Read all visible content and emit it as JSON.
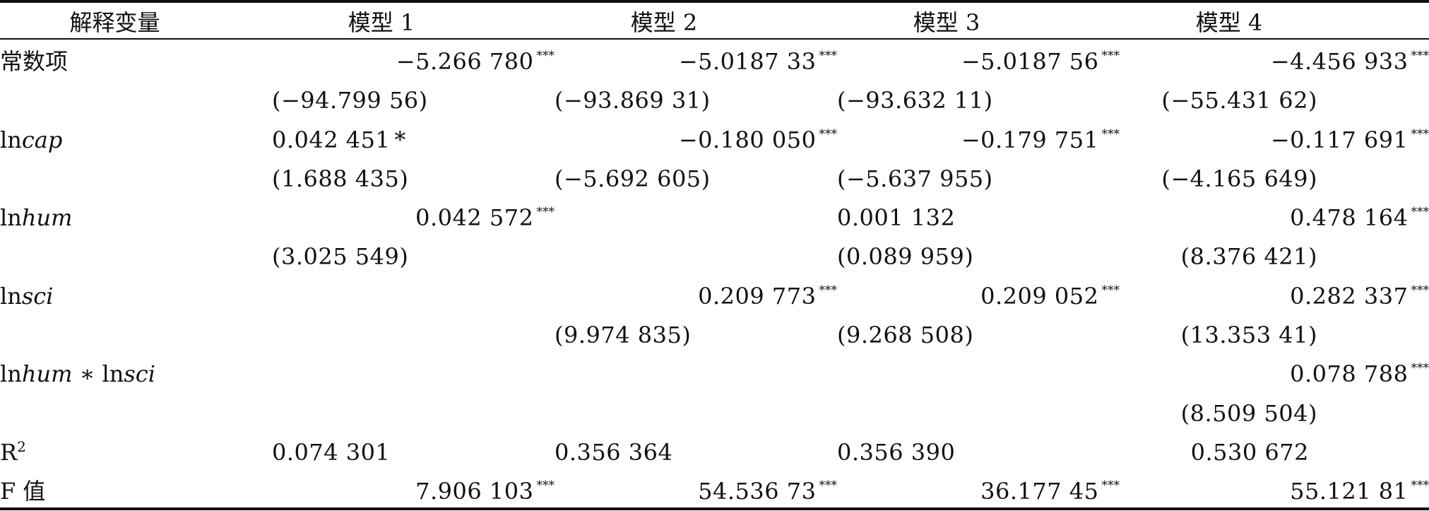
{
  "table": {
    "headers": [
      "解释变量",
      "模型 1",
      "模型 2",
      "模型 3",
      "模型 4"
    ],
    "rows": [
      {
        "var_label": "常数项",
        "c1": "−5.266 780",
        "c1_sig": "***",
        "c2": "−5.0187 33",
        "c2_sig": "***",
        "c3": "−5.0187 56",
        "c3_sig": "***",
        "c4": "−4.456 933",
        "c4_sig": "***"
      },
      {
        "var_label": "",
        "c1": "(−94.799 56)",
        "c2": "(−93.869 31)",
        "c3": "(−93.632 11)",
        "c4": "(−55.431 62)"
      },
      {
        "var_label_prefix": "ln",
        "var_label_italic": "cap",
        "c1": "0.042 451",
        "c1_sig": "*",
        "c2": "−0.180 050",
        "c2_sig": "***",
        "c3": "−0.179 751",
        "c3_sig": "***",
        "c4": "−0.117 691",
        "c4_sig": "***"
      },
      {
        "var_label": "",
        "c1": "(1.688 435)",
        "c2": "(−5.692 605)",
        "c3": "(−5.637 955)",
        "c4": "(−4.165 649)"
      },
      {
        "var_label_prefix": "ln",
        "var_label_italic": "hum",
        "c1": "0.042 572",
        "c1_sig": "***",
        "c2": "",
        "c3": "0.001 132",
        "c4": "0.478 164",
        "c4_sig": "***"
      },
      {
        "var_label": "",
        "c1": "(3.025 549)",
        "c2": "",
        "c3": "(0.089 959)",
        "c4": "(8.376 421)"
      },
      {
        "var_label_prefix": "ln",
        "var_label_italic": "sci",
        "c1": "",
        "c2": "0.209 773",
        "c2_sig": "***",
        "c3": "0.209 052",
        "c3_sig": "***",
        "c4": "0.282 337",
        "c4_sig": "***"
      },
      {
        "var_label": "",
        "c1": "",
        "c2": "(9.974 835)",
        "c3": "(9.268 508)",
        "c4": "(13.353 41)"
      },
      {
        "var_label_prefix": "ln",
        "var_label_italic": "hum",
        "var_label_mid": " ∗ ln",
        "var_label_italic2": "sci",
        "c1": "",
        "c2": "",
        "c3": "",
        "c4": "0.078 788",
        "c4_sig": "***"
      },
      {
        "var_label": "",
        "c1": "",
        "c2": "",
        "c3": "",
        "c4": "(8.509 504)"
      },
      {
        "var_label_base": "R",
        "var_label_sup": "2",
        "c1": "0.074 301",
        "c2": "0.356 364",
        "c3": "0.356 390",
        "c4": "0.530 672"
      },
      {
        "var_label": "F 值",
        "c1": "7.906 103",
        "c1_sig": "***",
        "c2": "54.536 73",
        "c2_sig": "***",
        "c3": "36.177 45",
        "c3_sig": "***",
        "c4": "55.121 81",
        "c4_sig": "***"
      }
    ]
  }
}
